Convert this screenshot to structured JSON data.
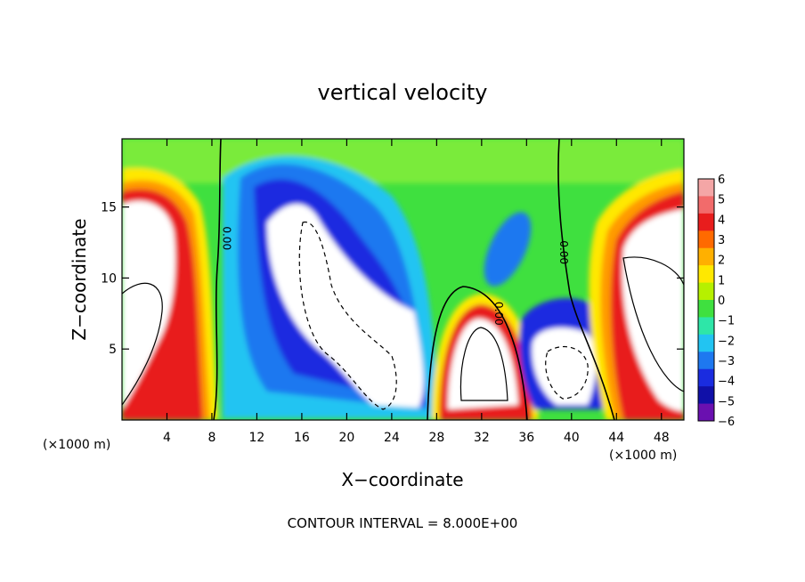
{
  "chart_data": {
    "type": "heatmap",
    "title": "vertical velocity",
    "xlabel": "X−coordinate",
    "ylabel": "Z−coordinate",
    "x_unit_left": "(×1000 m)",
    "x_unit_right": "(×1000 m)",
    "footer": "CONTOUR INTERVAL = 8.000E+00",
    "xlim": [
      0,
      50
    ],
    "ylim": [
      0,
      19.8
    ],
    "x_ticks": [
      4,
      8,
      12,
      16,
      20,
      24,
      28,
      32,
      36,
      40,
      44,
      48
    ],
    "x_tick_labels": [
      "4",
      "8",
      "12",
      "16",
      "20",
      "24",
      "28",
      "32",
      "36",
      "40",
      "44",
      "48"
    ],
    "y_ticks": [
      5,
      10,
      15
    ],
    "y_tick_labels": [
      "5",
      "10",
      "15"
    ],
    "colorbar": {
      "levels": [
        6,
        5,
        4,
        3,
        2,
        1,
        0,
        -1,
        -2,
        -3,
        -4,
        -5,
        -6
      ],
      "labels": [
        "6",
        "5",
        "4",
        "3",
        "2",
        "1",
        "0",
        "−1",
        "−2",
        "−3",
        "−4",
        "−5",
        "−6"
      ],
      "colors": [
        "#f4a6a6",
        "#f26b6b",
        "#e81d1d",
        "#ff6a00",
        "#ffb000",
        "#ffe800",
        "#b6f000",
        "#3fe03f",
        "#2ee6a8",
        "#22c4f2",
        "#1e78f0",
        "#1a2ce0",
        "#1010a8",
        "#6a10b0"
      ]
    },
    "contour_labels": [
      {
        "text": "0.00",
        "x": 9.0,
        "y": 12.8
      },
      {
        "text": "0.00",
        "x": 33.2,
        "y": 7.5
      },
      {
        "text": "0.00",
        "x": 39.0,
        "y": 11.8
      }
    ],
    "features": [
      {
        "name": "left updraft column",
        "x": [
          0,
          8
        ],
        "z": [
          0,
          18
        ],
        "sign": "positive"
      },
      {
        "name": "main downdraft",
        "x": [
          12,
          28
        ],
        "z": [
          1,
          16
        ],
        "sign": "negative"
      },
      {
        "name": "central updraft",
        "x": [
          28,
          36
        ],
        "z": [
          0,
          8
        ],
        "sign": "positive"
      },
      {
        "name": "right downdraft",
        "x": [
          36,
          42
        ],
        "z": [
          1,
          7
        ],
        "sign": "negative"
      },
      {
        "name": "right updraft column",
        "x": [
          43,
          50
        ],
        "z": [
          0,
          15
        ],
        "sign": "positive"
      }
    ]
  }
}
